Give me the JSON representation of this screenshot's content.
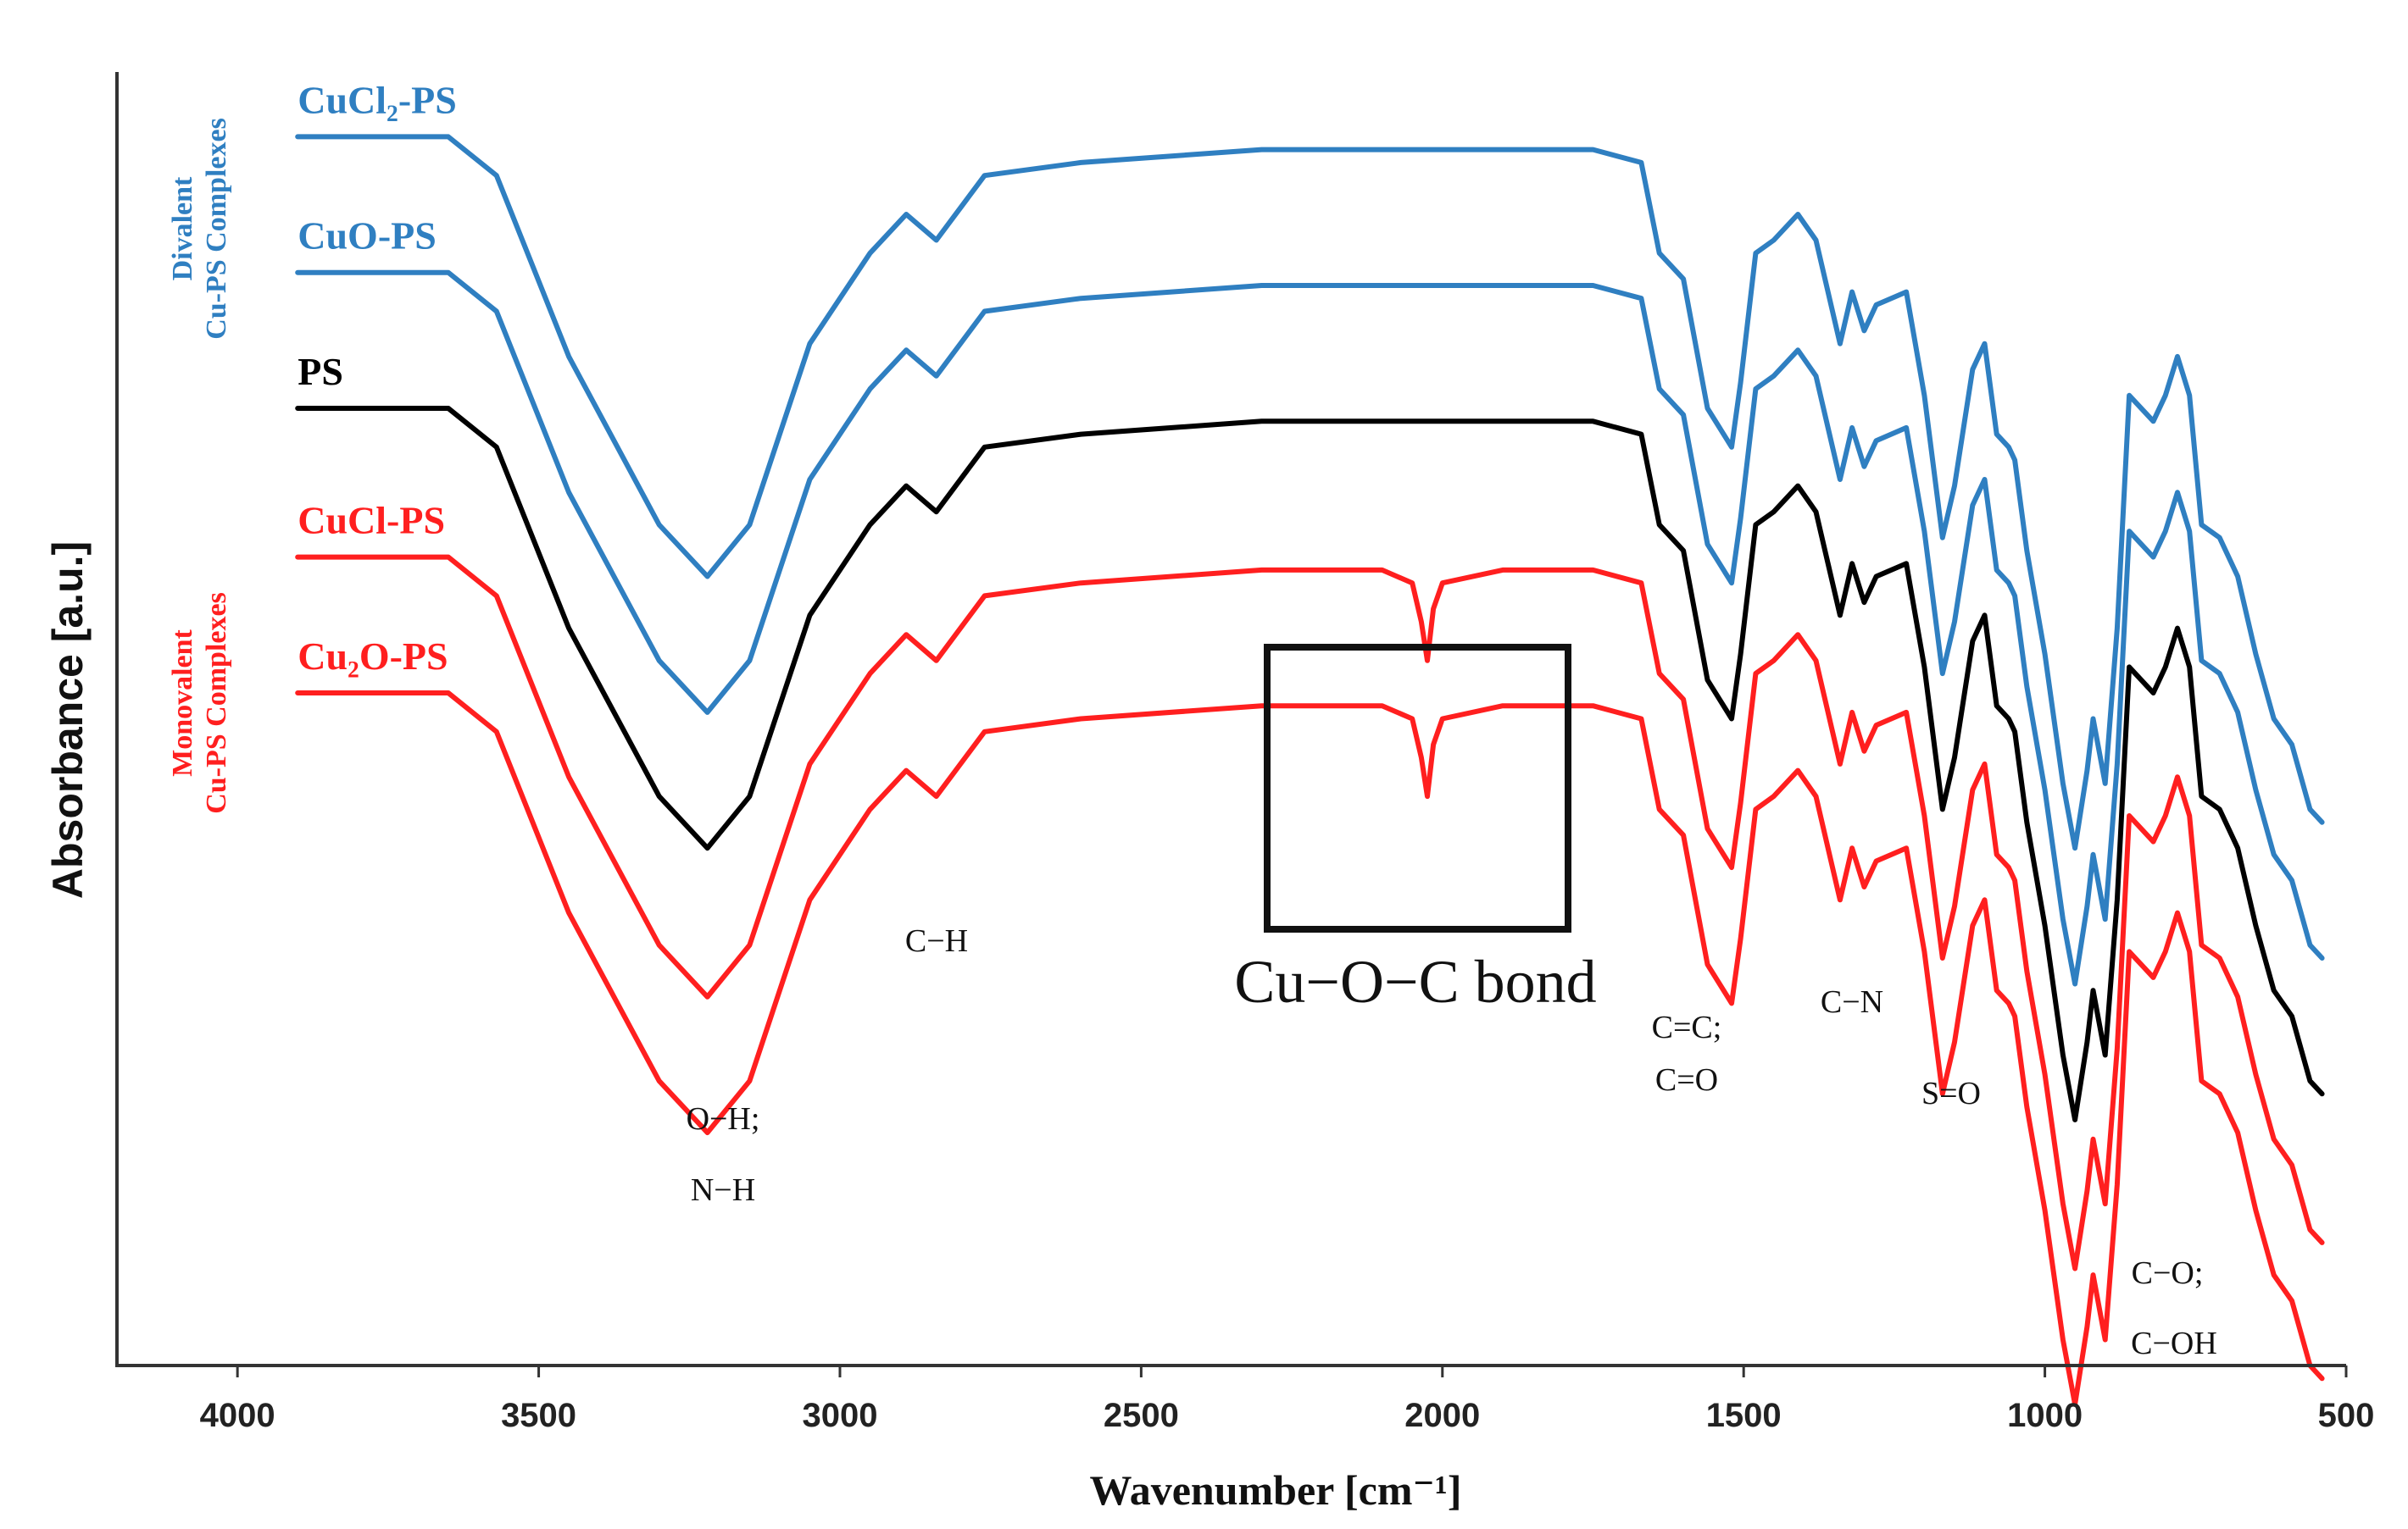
{
  "chart_data": {
    "type": "line",
    "title": "",
    "xlabel": "Wavenumber  [cm⁻¹]",
    "ylabel": "Absorbance [a.u.]",
    "xlim": [
      4200,
      500
    ],
    "xticks": [
      4000,
      3500,
      3000,
      2500,
      2000,
      1500,
      1000,
      500
    ],
    "ylim": [
      0,
      1
    ],
    "grid": false,
    "series": [
      {
        "name": "CuCl₂-PS",
        "color": "#2f7fc1",
        "offset": 0.95,
        "wn": [
          3900,
          3650,
          3570,
          3450,
          3300,
          3220,
          3150,
          3050,
          2950,
          2890,
          2840,
          2760,
          2600,
          2300,
          2100,
          1900,
          1750,
          1670,
          1640,
          1600,
          1560,
          1520,
          1505,
          1480,
          1450,
          1410,
          1380,
          1340,
          1320,
          1300,
          1280,
          1230,
          1200,
          1170,
          1150,
          1120,
          1100,
          1080,
          1060,
          1050,
          1030,
          1000,
          970,
          950,
          930,
          920,
          900,
          880,
          860,
          820,
          800,
          780,
          760,
          740,
          710,
          680,
          650,
          620,
          590,
          560,
          540
        ],
        "abs": [
          0,
          0,
          -0.03,
          -0.17,
          -0.3,
          -0.34,
          -0.3,
          -0.16,
          -0.09,
          -0.06,
          -0.08,
          -0.03,
          -0.02,
          -0.01,
          -0.01,
          -0.01,
          -0.01,
          -0.02,
          -0.09,
          -0.11,
          -0.21,
          -0.24,
          -0.19,
          -0.09,
          -0.08,
          -0.06,
          -0.08,
          -0.16,
          -0.12,
          -0.15,
          -0.13,
          -0.12,
          -0.2,
          -0.31,
          -0.27,
          -0.18,
          -0.16,
          -0.23,
          -0.24,
          -0.25,
          -0.32,
          -0.4,
          -0.5,
          -0.55,
          -0.49,
          -0.45,
          -0.5,
          -0.38,
          -0.2,
          -0.22,
          -0.2,
          -0.17,
          -0.2,
          -0.3,
          -0.31,
          -0.34,
          -0.4,
          -0.45,
          -0.47,
          -0.52,
          -0.53
        ]
      },
      {
        "name": "CuO-PS",
        "color": "#2f7fc1",
        "offset": 0.845,
        "wn": [
          3900,
          3650,
          3570,
          3450,
          3300,
          3220,
          3150,
          3050,
          2950,
          2890,
          2840,
          2760,
          2600,
          2300,
          2100,
          1900,
          1750,
          1670,
          1640,
          1600,
          1560,
          1520,
          1505,
          1480,
          1450,
          1410,
          1380,
          1340,
          1320,
          1300,
          1280,
          1230,
          1200,
          1170,
          1150,
          1120,
          1100,
          1080,
          1060,
          1050,
          1030,
          1000,
          970,
          950,
          930,
          920,
          900,
          880,
          860,
          820,
          800,
          780,
          760,
          740,
          710,
          680,
          650,
          620,
          590,
          560,
          540
        ],
        "abs": [
          0,
          0,
          -0.03,
          -0.17,
          -0.3,
          -0.34,
          -0.3,
          -0.16,
          -0.09,
          -0.06,
          -0.08,
          -0.03,
          -0.02,
          -0.01,
          -0.01,
          -0.01,
          -0.01,
          -0.02,
          -0.09,
          -0.11,
          -0.21,
          -0.24,
          -0.19,
          -0.09,
          -0.08,
          -0.06,
          -0.08,
          -0.16,
          -0.12,
          -0.15,
          -0.13,
          -0.12,
          -0.2,
          -0.31,
          -0.27,
          -0.18,
          -0.16,
          -0.23,
          -0.24,
          -0.25,
          -0.32,
          -0.4,
          -0.5,
          -0.55,
          -0.49,
          -0.45,
          -0.5,
          -0.38,
          -0.2,
          -0.22,
          -0.2,
          -0.17,
          -0.2,
          -0.3,
          -0.31,
          -0.34,
          -0.4,
          -0.45,
          -0.47,
          -0.52,
          -0.53
        ]
      },
      {
        "name": "PS",
        "color": "#000000",
        "offset": 0.74,
        "wn": [
          3900,
          3650,
          3570,
          3450,
          3300,
          3220,
          3150,
          3050,
          2950,
          2890,
          2840,
          2760,
          2600,
          2300,
          2100,
          1900,
          1750,
          1670,
          1640,
          1600,
          1560,
          1520,
          1505,
          1480,
          1450,
          1410,
          1380,
          1340,
          1320,
          1300,
          1280,
          1230,
          1200,
          1170,
          1150,
          1120,
          1100,
          1080,
          1060,
          1050,
          1030,
          1000,
          970,
          950,
          930,
          920,
          900,
          880,
          860,
          820,
          800,
          780,
          760,
          740,
          710,
          680,
          650,
          620,
          590,
          560,
          540
        ],
        "abs": [
          0,
          0,
          -0.03,
          -0.17,
          -0.3,
          -0.34,
          -0.3,
          -0.16,
          -0.09,
          -0.06,
          -0.08,
          -0.03,
          -0.02,
          -0.01,
          -0.01,
          -0.01,
          -0.01,
          -0.02,
          -0.09,
          -0.11,
          -0.21,
          -0.24,
          -0.19,
          -0.09,
          -0.08,
          -0.06,
          -0.08,
          -0.16,
          -0.12,
          -0.15,
          -0.13,
          -0.12,
          -0.2,
          -0.31,
          -0.27,
          -0.18,
          -0.16,
          -0.23,
          -0.24,
          -0.25,
          -0.32,
          -0.4,
          -0.5,
          -0.55,
          -0.49,
          -0.45,
          -0.5,
          -0.38,
          -0.2,
          -0.22,
          -0.2,
          -0.17,
          -0.2,
          -0.3,
          -0.31,
          -0.34,
          -0.4,
          -0.45,
          -0.47,
          -0.52,
          -0.53
        ]
      },
      {
        "name": "CuCl-PS",
        "color": "#ff1f1f",
        "offset": 0.625,
        "wn": [
          3900,
          3650,
          3570,
          3450,
          3300,
          3220,
          3150,
          3050,
          2950,
          2890,
          2840,
          2760,
          2600,
          2300,
          2100,
          2050,
          2035,
          2025,
          2015,
          2000,
          1900,
          1750,
          1670,
          1640,
          1600,
          1560,
          1520,
          1505,
          1480,
          1450,
          1410,
          1380,
          1340,
          1320,
          1300,
          1280,
          1230,
          1200,
          1170,
          1150,
          1120,
          1100,
          1080,
          1060,
          1050,
          1030,
          1000,
          970,
          950,
          930,
          920,
          900,
          880,
          860,
          820,
          800,
          780,
          760,
          740,
          710,
          680,
          650,
          620,
          590,
          560,
          540
        ],
        "abs": [
          0,
          0,
          -0.03,
          -0.17,
          -0.3,
          -0.34,
          -0.3,
          -0.16,
          -0.09,
          -0.06,
          -0.08,
          -0.03,
          -0.02,
          -0.01,
          -0.01,
          -0.02,
          -0.05,
          -0.08,
          -0.04,
          -0.02,
          -0.01,
          -0.01,
          -0.02,
          -0.09,
          -0.11,
          -0.21,
          -0.24,
          -0.19,
          -0.09,
          -0.08,
          -0.06,
          -0.08,
          -0.16,
          -0.12,
          -0.15,
          -0.13,
          -0.12,
          -0.2,
          -0.31,
          -0.27,
          -0.18,
          -0.16,
          -0.23,
          -0.24,
          -0.25,
          -0.32,
          -0.4,
          -0.5,
          -0.55,
          -0.49,
          -0.45,
          -0.5,
          -0.38,
          -0.2,
          -0.22,
          -0.2,
          -0.17,
          -0.2,
          -0.3,
          -0.31,
          -0.34,
          -0.4,
          -0.45,
          -0.47,
          -0.52,
          -0.53
        ]
      },
      {
        "name": "Cu₂O-PS",
        "color": "#ff1f1f",
        "offset": 0.52,
        "wn": [
          3900,
          3650,
          3570,
          3450,
          3300,
          3220,
          3150,
          3050,
          2950,
          2890,
          2840,
          2760,
          2600,
          2300,
          2100,
          2050,
          2035,
          2025,
          2015,
          2000,
          1900,
          1750,
          1670,
          1640,
          1600,
          1560,
          1520,
          1505,
          1480,
          1450,
          1410,
          1380,
          1340,
          1320,
          1300,
          1280,
          1230,
          1200,
          1170,
          1150,
          1120,
          1100,
          1080,
          1060,
          1050,
          1030,
          1000,
          970,
          950,
          930,
          920,
          900,
          880,
          860,
          820,
          800,
          780,
          760,
          740,
          710,
          680,
          650,
          620,
          590,
          560,
          540
        ],
        "abs": [
          0,
          0,
          -0.03,
          -0.17,
          -0.3,
          -0.34,
          -0.3,
          -0.16,
          -0.09,
          -0.06,
          -0.08,
          -0.03,
          -0.02,
          -0.01,
          -0.01,
          -0.02,
          -0.05,
          -0.08,
          -0.04,
          -0.02,
          -0.01,
          -0.01,
          -0.02,
          -0.09,
          -0.11,
          -0.21,
          -0.24,
          -0.19,
          -0.09,
          -0.08,
          -0.06,
          -0.08,
          -0.16,
          -0.12,
          -0.15,
          -0.13,
          -0.12,
          -0.2,
          -0.31,
          -0.27,
          -0.18,
          -0.16,
          -0.23,
          -0.24,
          -0.25,
          -0.32,
          -0.4,
          -0.5,
          -0.55,
          -0.49,
          -0.45,
          -0.5,
          -0.38,
          -0.2,
          -0.22,
          -0.2,
          -0.17,
          -0.2,
          -0.3,
          -0.31,
          -0.34,
          -0.4,
          -0.45,
          -0.47,
          -0.52,
          -0.53
        ]
      }
    ],
    "groups": [
      {
        "name": "Divalent Cu-PS Complexes",
        "line1": "Divalent",
        "line2": "Cu-PS Complexes",
        "color": "#2f7fc1"
      },
      {
        "name": "Monovalent Cu-PS Complexes",
        "line1": "Monovalent",
        "line2": "Cu-PS Complexes",
        "color": "#ff1f1f"
      }
    ],
    "annotations": {
      "oh_nh": {
        "line1": "O−H;",
        "line2": "N−H",
        "wavenumber": 3220
      },
      "ch": {
        "text": "C−H",
        "wavenumber": 2870
      },
      "cc_co": {
        "line1": "C=C;",
        "line2": "C=O",
        "wavenumber": 1520
      },
      "cn": {
        "text": "C−N",
        "wavenumber": 1300
      },
      "so": {
        "text": "S=O",
        "wavenumber": 1170
      },
      "co_coh": {
        "line1": "C−O;",
        "line2": "C−OH",
        "wavenumber": 920
      },
      "box": {
        "text": "Cu−O−C bond",
        "wn_from": 2280,
        "wn_to": 1780
      }
    }
  }
}
